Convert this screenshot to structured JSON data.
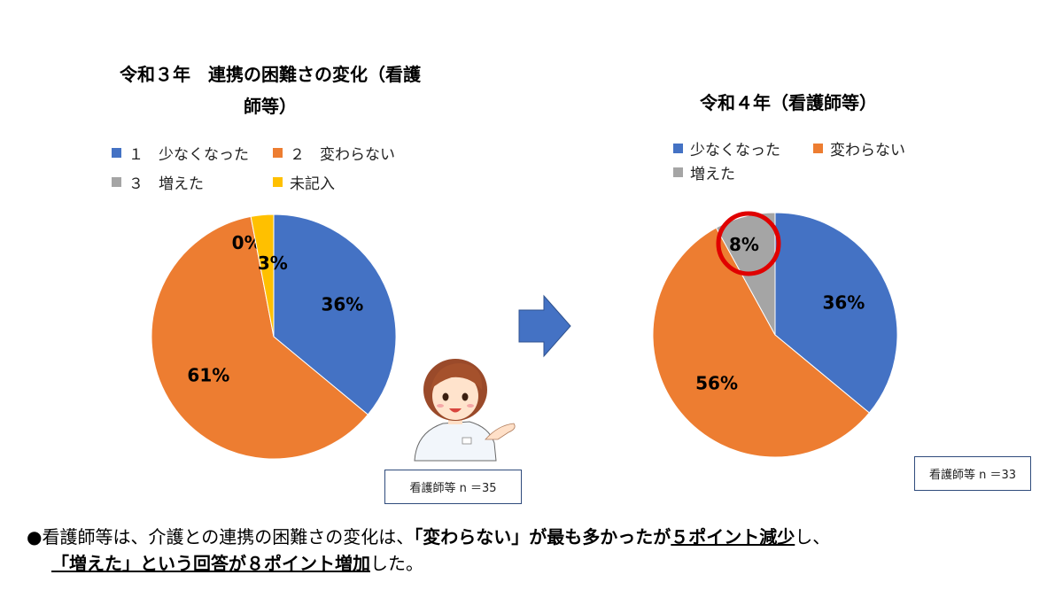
{
  "chart_data": [
    {
      "type": "pie",
      "title_line1": "令和３年　連携の困難さの変化（看護",
      "title_line2": "師等）",
      "categories": [
        "１　少なくなった",
        "２　変わらない",
        "３　増えた",
        "未記入"
      ],
      "values": [
        36,
        61,
        0,
        3
      ],
      "labels": [
        "36%",
        "61%",
        "0%",
        "3%"
      ],
      "colors": [
        "#4472c4",
        "#ed7d31",
        "#a5a5a5",
        "#ffc000"
      ],
      "legend_position": "top",
      "n_label": "看護師等 n ＝35"
    },
    {
      "type": "pie",
      "title": "令和４年（看護師等）",
      "categories": [
        "少なくなった",
        "変わらない",
        "増えた"
      ],
      "values": [
        36,
        56,
        8
      ],
      "labels": [
        "36%",
        "56%",
        "8%"
      ],
      "colors": [
        "#4472c4",
        "#ed7d31",
        "#a5a5a5"
      ],
      "legend_position": "top",
      "highlight_color": "#e00000",
      "n_label": "看護師等 n ＝33"
    }
  ],
  "summary": {
    "line1": [
      {
        "text": "●看護師等は、介護との連携の困難さの変化は、",
        "bold": false,
        "underline": false
      },
      {
        "text": "「変わらない」が最も多かったが",
        "bold": true,
        "underline": false
      },
      {
        "text": "５ポイント減少",
        "bold": true,
        "underline": true
      },
      {
        "text": "し、",
        "bold": false,
        "underline": false
      }
    ],
    "line2": [
      {
        "text": "「増えた」という回答が８ポイント増加",
        "bold": true,
        "underline": true
      },
      {
        "text": "した。",
        "bold": false,
        "underline": false
      }
    ]
  }
}
